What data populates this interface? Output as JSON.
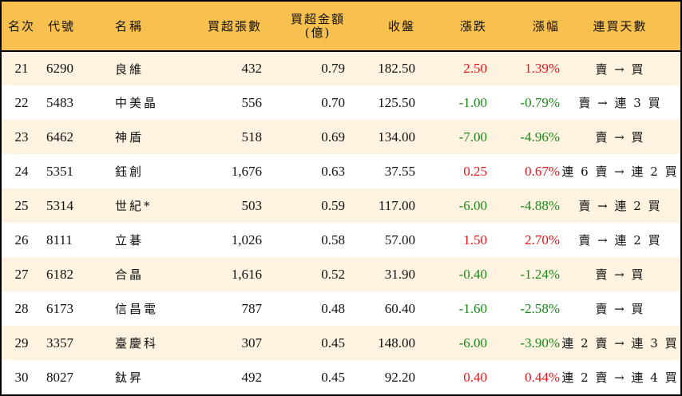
{
  "header": {
    "rank": "名次",
    "code": "代號",
    "name": "名稱",
    "net_buy_lots": "買超張數",
    "net_buy_amount_line1": "買超金額",
    "net_buy_amount_line2": "(億)",
    "close": "收盤",
    "change": "漲跌",
    "change_pct": "漲幅",
    "consecutive_days": "連買天數"
  },
  "colors": {
    "header_bg": "#f8c04e",
    "odd_row_bg": "#fdf3e0",
    "even_row_bg": "#ffffff",
    "up": "#e8141b",
    "down": "#1a8a1a"
  },
  "rows": [
    {
      "rank": "21",
      "code": "6290",
      "name": "良維",
      "lots": "432",
      "amount": "0.79",
      "close": "182.50",
      "change": "2.50",
      "pct": "1.39%",
      "trend": "up",
      "days": "賣 → 買"
    },
    {
      "rank": "22",
      "code": "5483",
      "name": "中美晶",
      "lots": "556",
      "amount": "0.70",
      "close": "125.50",
      "change": "-1.00",
      "pct": "-0.79%",
      "trend": "down",
      "days": "賣 → 連 3 買"
    },
    {
      "rank": "23",
      "code": "6462",
      "name": "神盾",
      "lots": "518",
      "amount": "0.69",
      "close": "134.00",
      "change": "-7.00",
      "pct": "-4.96%",
      "trend": "down",
      "days": "賣 → 買"
    },
    {
      "rank": "24",
      "code": "5351",
      "name": "鈺創",
      "lots": "1,676",
      "amount": "0.63",
      "close": "37.55",
      "change": "0.25",
      "pct": "0.67%",
      "trend": "up",
      "days": "連 6 賣 → 連 2 買"
    },
    {
      "rank": "25",
      "code": "5314",
      "name": "世紀*",
      "lots": "503",
      "amount": "0.59",
      "close": "117.00",
      "change": "-6.00",
      "pct": "-4.88%",
      "trend": "down",
      "days": "賣 → 連 2 買"
    },
    {
      "rank": "26",
      "code": "8111",
      "name": "立碁",
      "lots": "1,026",
      "amount": "0.58",
      "close": "57.00",
      "change": "1.50",
      "pct": "2.70%",
      "trend": "up",
      "days": "賣 → 連 2 買"
    },
    {
      "rank": "27",
      "code": "6182",
      "name": "合晶",
      "lots": "1,616",
      "amount": "0.52",
      "close": "31.90",
      "change": "-0.40",
      "pct": "-1.24%",
      "trend": "down",
      "days": "賣 → 買"
    },
    {
      "rank": "28",
      "code": "6173",
      "name": "信昌電",
      "lots": "787",
      "amount": "0.48",
      "close": "60.40",
      "change": "-1.60",
      "pct": "-2.58%",
      "trend": "down",
      "days": "賣 → 買"
    },
    {
      "rank": "29",
      "code": "3357",
      "name": "臺慶科",
      "lots": "307",
      "amount": "0.45",
      "close": "148.00",
      "change": "-6.00",
      "pct": "-3.90%",
      "trend": "down",
      "days": "連 2 賣 → 連 3 買"
    },
    {
      "rank": "30",
      "code": "8027",
      "name": "鈦昇",
      "lots": "492",
      "amount": "0.45",
      "close": "92.20",
      "change": "0.40",
      "pct": "0.44%",
      "trend": "up",
      "days": "連 2 賣 → 連 4 買"
    }
  ]
}
